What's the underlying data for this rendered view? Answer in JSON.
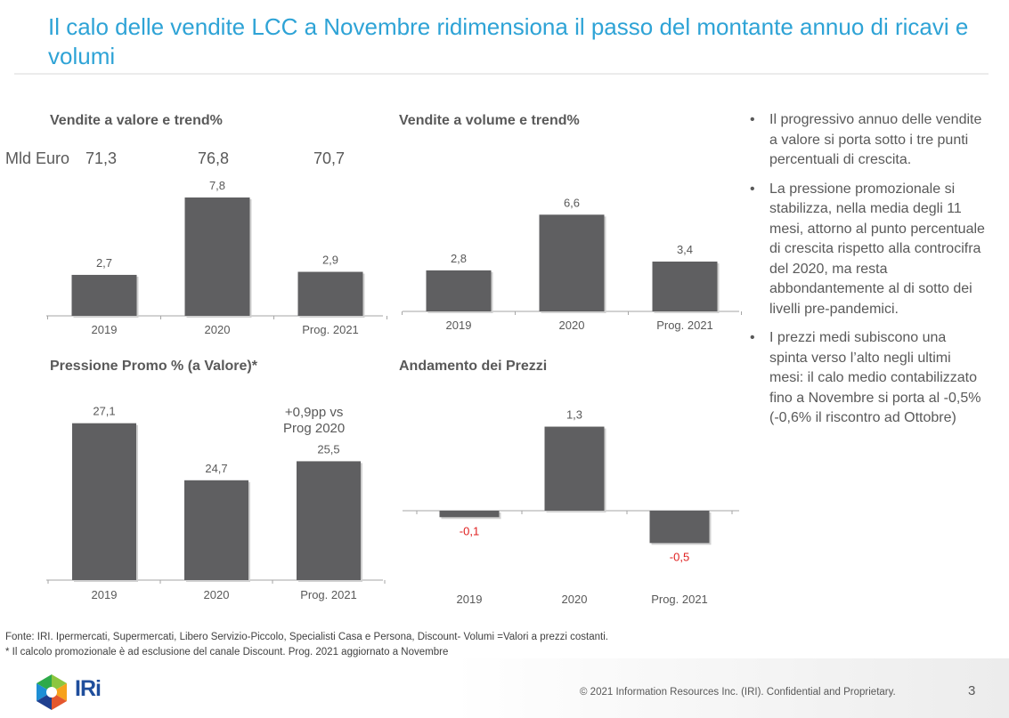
{
  "title": "Il calo delle vendite LCC a Novembre ridimensiona il passo del montante annuo di ricavi e volumi",
  "colors": {
    "title": "#2ea3d6",
    "bar": "#5f5f61",
    "text": "#595959",
    "negative_label": "#e02020"
  },
  "chart_data": [
    {
      "id": "valore",
      "type": "bar",
      "title": "Vendite a valore e trend%",
      "categories": [
        "2019",
        "2020",
        "Prog. 2021"
      ],
      "values": [
        2.7,
        7.8,
        2.9
      ],
      "value_labels": [
        "2,7",
        "7,8",
        "2,9"
      ],
      "ylim": [
        0,
        8.5
      ],
      "xlabel": "",
      "ylabel": "",
      "grid": false,
      "top_row_prefix": "Mld Euro",
      "top_row_values": [
        "71,3",
        "76,8",
        "70,7"
      ]
    },
    {
      "id": "volume",
      "type": "bar",
      "title": "Vendite a volume e trend%",
      "categories": [
        "2019",
        "2020",
        "Prog. 2021"
      ],
      "values": [
        2.8,
        6.6,
        3.4
      ],
      "value_labels": [
        "2,8",
        "6,6",
        "3,4"
      ],
      "ylim": [
        0,
        8.5
      ],
      "xlabel": "",
      "ylabel": "",
      "grid": false
    },
    {
      "id": "promo",
      "type": "bar",
      "title": "Pressione Promo % (a Valore)*",
      "categories": [
        "2019",
        "2020",
        "Prog. 2021"
      ],
      "values": [
        27.1,
        24.7,
        25.5
      ],
      "value_labels": [
        "27,1",
        "24,7",
        "25,5"
      ],
      "ylim": [
        20.5,
        27.5
      ],
      "xlabel": "",
      "ylabel": "",
      "grid": false,
      "annotation": [
        "+0,9pp vs",
        "Prog 2020"
      ]
    },
    {
      "id": "prezzi",
      "type": "bar",
      "title": "Andamento dei Prezzi",
      "categories": [
        "2019",
        "2020",
        "Prog. 2021"
      ],
      "values": [
        -0.1,
        1.3,
        -0.5
      ],
      "value_labels": [
        "-0,1",
        "1,3",
        "-0,5"
      ],
      "ylim": [
        -0.9,
        1.5
      ],
      "xlabel": "",
      "ylabel": "",
      "grid": false
    }
  ],
  "bullets": [
    "Il progressivo annuo delle vendite a valore si porta sotto i tre punti percentuali di crescita.",
    "La pressione promozionale si stabilizza, nella media degli 11 mesi, attorno al punto percentuale di crescita rispetto alla controcifra del 2020, ma resta abbondantemente al di sotto dei livelli pre-pandemici.",
    "I prezzi medi subiscono una spinta verso l’alto negli ultimi mesi: il calo medio contabilizzato fino a Novembre si porta al -0,5% (-0,6% il riscontro ad Ottobre)"
  ],
  "bullet_glyph": "•",
  "footnotes": {
    "source": "Fonte: IRI. Ipermercati, Supermercati, Libero Servizio-Piccolo, Specialisti Casa e Persona, Discount-  Volumi =Valori a prezzi costanti.",
    "note": "* Il calcolo promozionale è ad esclusione del canale Discount.  Prog. 2021 aggiornato a Novembre"
  },
  "footer": {
    "logo_text": "IRi",
    "logo_icon": "iri-hexagon-logo",
    "copyright": "© 2021 Information Resources Inc. (IRI). Confidential and Proprietary.",
    "page_number": "3"
  }
}
